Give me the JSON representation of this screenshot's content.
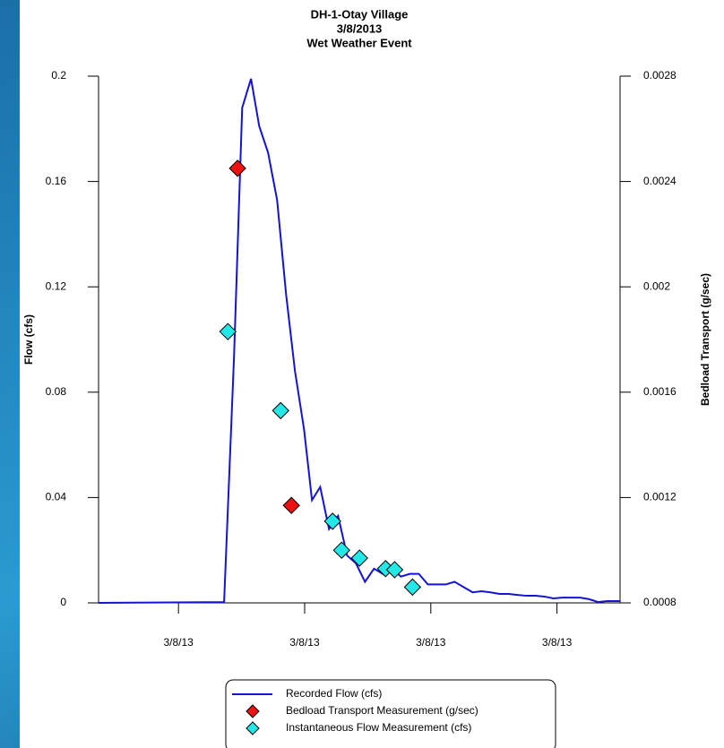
{
  "chart_data": {
    "type": "line",
    "title": [
      "DH-1-Otay Village",
      "3/8/2013",
      "Wet Weather Event"
    ],
    "ylabel": "Flow (cfs)",
    "y2label": "Bedload Transport (g/sec)",
    "xlim": [
      2.2,
      27
    ],
    "xticks": [
      {
        "value": 6,
        "label": "3/8/13"
      },
      {
        "value": 12,
        "label": "3/8/13"
      },
      {
        "value": 18,
        "label": "3/8/13"
      },
      {
        "value": 24,
        "label": "3/8/13"
      }
    ],
    "ylim": [
      0,
      0.2
    ],
    "yticks": [
      0,
      0.04,
      0.08,
      0.12,
      0.16,
      0.2
    ],
    "y2lim": [
      0.0008,
      0.0028
    ],
    "y2ticks": [
      0.0008,
      0.0012,
      0.0016,
      0.002,
      0.0024,
      0.0028
    ],
    "series": [
      {
        "name": "Recorded Flow (cfs)",
        "type": "line",
        "color": "#1414d2",
        "x": [
          2.2,
          8.17,
          8.64,
          9.03,
          9.45,
          9.84,
          10.26,
          10.69,
          11.12,
          11.54,
          11.97,
          12.35,
          12.74,
          13.16,
          13.59,
          14.02,
          14.44,
          14.87,
          15.3,
          15.72,
          16.15,
          16.58,
          17.0,
          17.43,
          17.86,
          18.28,
          18.71,
          19.13,
          19.56,
          19.99,
          20.41,
          20.84,
          21.27,
          21.69,
          22.12,
          22.55,
          22.97,
          23.4,
          23.83,
          24.25,
          24.68,
          25.1,
          25.53,
          25.96,
          26.38,
          27
        ],
        "values": [
          0,
          0.0003,
          0.093,
          0.188,
          0.199,
          0.181,
          0.171,
          0.153,
          0.117,
          0.088,
          0.066,
          0.039,
          0.044,
          0.028,
          0.033,
          0.018,
          0.015,
          0.008,
          0.013,
          0.011,
          0.013,
          0.01,
          0.011,
          0.011,
          0.007,
          0.007,
          0.007,
          0.008,
          0.006,
          0.004,
          0.0044,
          0.004,
          0.0034,
          0.0034,
          0.003,
          0.0027,
          0.0027,
          0.0024,
          0.0017,
          0.002,
          0.002,
          0.002,
          0.0014,
          0.0003,
          0.0007,
          0.0007
        ]
      },
      {
        "name": "Bedload Transport Measurement (g/sec)",
        "type": "scatter",
        "axis": "y2",
        "color": "#ee1111",
        "x": [
          8.81,
          11.37
        ],
        "values": [
          0.00245,
          0.00117
        ]
      },
      {
        "name": "Instantaneous Flow Measurement (cfs)",
        "type": "scatter",
        "color": "#22e8e8",
        "x": [
          8.35,
          10.86,
          13.33,
          13.76,
          14.61,
          15.85,
          16.28,
          17.13
        ],
        "values": [
          0.103,
          0.073,
          0.031,
          0.02,
          0.017,
          0.013,
          0.0126,
          0.006
        ]
      }
    ]
  }
}
